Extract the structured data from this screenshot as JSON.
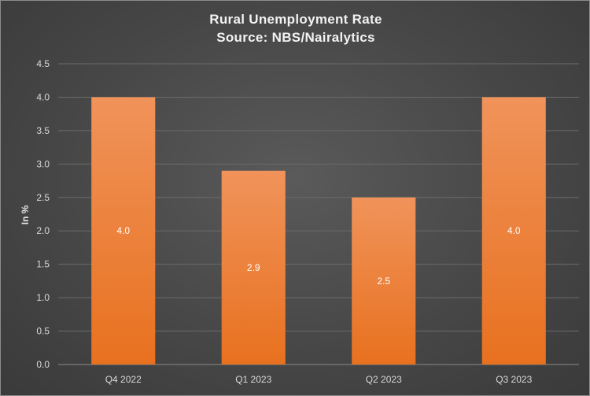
{
  "chart_data": {
    "type": "bar",
    "title": "Rural Unemployment Rate",
    "subtitle": "Source: NBS/Nairalytics",
    "xlabel": "",
    "ylabel": "In %",
    "categories": [
      "Q4 2022",
      "Q1 2023",
      "Q2 2023",
      "Q3 2023"
    ],
    "values": [
      4.0,
      2.9,
      2.5,
      4.0
    ],
    "data_labels": [
      "4.0",
      "2.9",
      "2.5",
      "4.0"
    ],
    "ylim": [
      0,
      4.5
    ],
    "yticks": [
      "0.0",
      "0.5",
      "1.0",
      "1.5",
      "2.0",
      "2.5",
      "3.0",
      "3.5",
      "4.0",
      "4.5"
    ],
    "grid": true,
    "legend": "none",
    "colors": {
      "bar_top": "#f0935a",
      "bar_bottom": "#e8711f",
      "background": "#474747"
    }
  }
}
